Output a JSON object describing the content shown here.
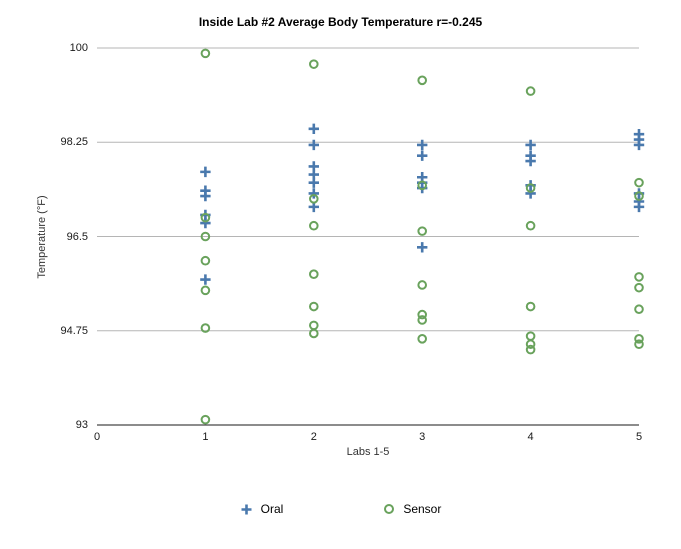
{
  "colors": {
    "oral": "#4a79ad",
    "sensor": "#69a25c",
    "grid": "#b5b5b5",
    "axis": "#1a1a1a",
    "background": "#ffffff"
  },
  "chart_data": {
    "type": "scatter",
    "title": "Inside Lab #2 Average Body Temperature r=-0.245",
    "xlabel": "Labs 1-5",
    "ylabel": "Temperature (°F)",
    "xlim": [
      0,
      5
    ],
    "ylim": [
      93,
      100
    ],
    "xticks": [
      0,
      1,
      2,
      3,
      4,
      5
    ],
    "yticks": [
      93,
      94.75,
      96.5,
      98.25,
      100
    ],
    "grid": "horizontal",
    "legend_position": "bottom",
    "series": [
      {
        "name": "Oral",
        "marker": "plus",
        "color": "#4a79ad",
        "points": [
          [
            1,
            97.7
          ],
          [
            1,
            97.35
          ],
          [
            1,
            97.25
          ],
          [
            1,
            96.9
          ],
          [
            1,
            96.75
          ],
          [
            1,
            95.7
          ],
          [
            2,
            98.5
          ],
          [
            2,
            98.2
          ],
          [
            2,
            97.8
          ],
          [
            2,
            97.65
          ],
          [
            2,
            97.5
          ],
          [
            2,
            97.3
          ],
          [
            2,
            97.05
          ],
          [
            3,
            98.2
          ],
          [
            3,
            98.0
          ],
          [
            3,
            97.6
          ],
          [
            3,
            97.5
          ],
          [
            3,
            97.4
          ],
          [
            3,
            96.3
          ],
          [
            4,
            98.2
          ],
          [
            4,
            98.0
          ],
          [
            4,
            97.9
          ],
          [
            4,
            97.45
          ],
          [
            4,
            97.3
          ],
          [
            5,
            98.4
          ],
          [
            5,
            98.3
          ],
          [
            5,
            98.2
          ],
          [
            5,
            97.3
          ],
          [
            5,
            97.15
          ],
          [
            5,
            97.05
          ]
        ]
      },
      {
        "name": "Sensor",
        "marker": "circle",
        "color": "#69a25c",
        "points": [
          [
            1,
            99.9
          ],
          [
            1,
            96.85
          ],
          [
            1,
            96.5
          ],
          [
            1,
            96.05
          ],
          [
            1,
            95.5
          ],
          [
            1,
            94.8
          ],
          [
            1,
            93.1
          ],
          [
            2,
            99.7
          ],
          [
            2,
            97.2
          ],
          [
            2,
            96.7
          ],
          [
            2,
            95.8
          ],
          [
            2,
            95.2
          ],
          [
            2,
            94.85
          ],
          [
            2,
            94.7
          ],
          [
            3,
            99.4
          ],
          [
            3,
            97.45
          ],
          [
            3,
            96.6
          ],
          [
            3,
            95.6
          ],
          [
            3,
            95.05
          ],
          [
            3,
            94.95
          ],
          [
            3,
            94.6
          ],
          [
            4,
            99.2
          ],
          [
            4,
            97.4
          ],
          [
            4,
            96.7
          ],
          [
            4,
            95.2
          ],
          [
            4,
            94.65
          ],
          [
            4,
            94.5
          ],
          [
            4,
            94.4
          ],
          [
            5,
            97.5
          ],
          [
            5,
            97.25
          ],
          [
            5,
            95.75
          ],
          [
            5,
            95.55
          ],
          [
            5,
            95.15
          ],
          [
            5,
            94.6
          ],
          [
            5,
            94.5
          ]
        ]
      }
    ]
  }
}
